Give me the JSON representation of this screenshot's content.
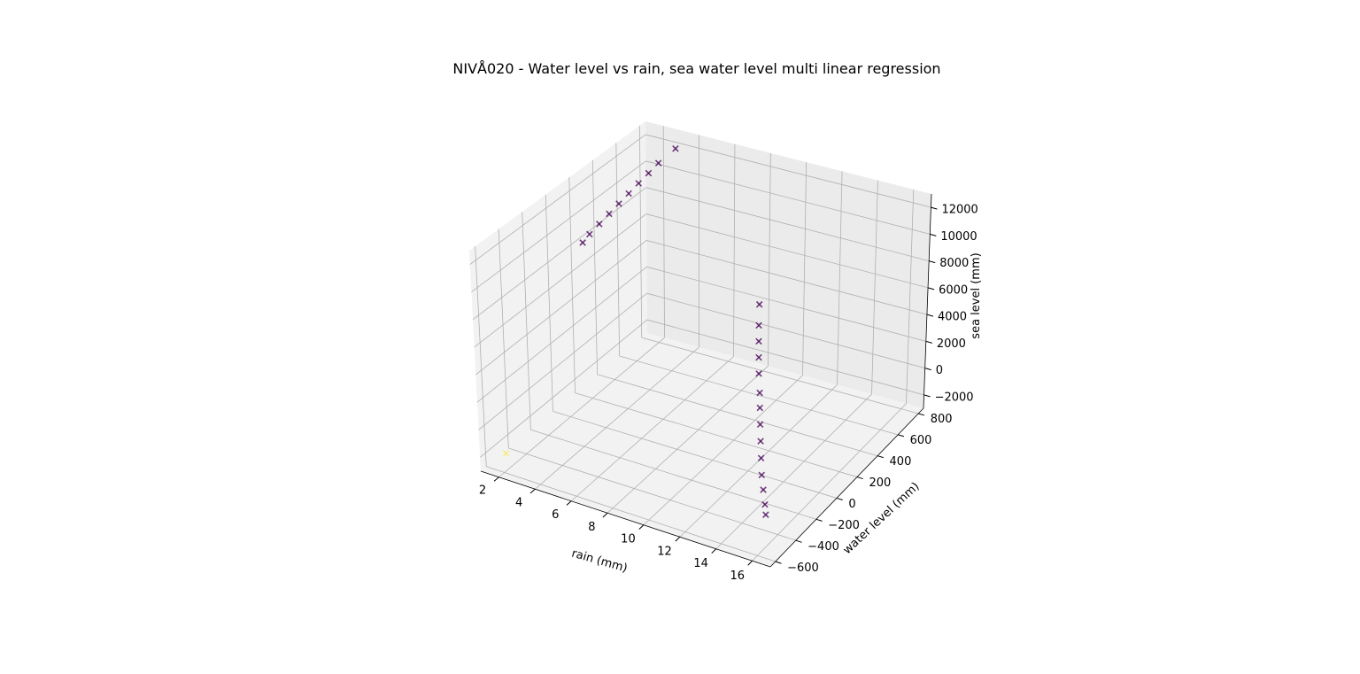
{
  "chart_data": {
    "type": "scatter",
    "title": "NIVÅ020 - Water level vs rain, sea water level  multi linear regression",
    "xlabel": "rain (mm)",
    "ylabel": "water level (mm)",
    "zlabel": "sea level (mm)",
    "x_ticks": [
      "2",
      "4",
      "6",
      "8",
      "10",
      "12",
      "14",
      "16"
    ],
    "y_ticks": [
      "−600",
      "−400",
      "−200",
      "0",
      "200",
      "400",
      "600",
      "800"
    ],
    "z_ticks": [
      "−2000",
      "0",
      "2000",
      "4000",
      "6000",
      "8000",
      "10000",
      "12000"
    ],
    "xlim": [
      1,
      17
    ],
    "ylim": [
      -650,
      850
    ],
    "zlim": [
      -3000,
      13000
    ],
    "marker": "x",
    "colors": {
      "dark": "#440154",
      "light": "#fde725"
    },
    "series": [
      {
        "points": [
          {
            "x": 1.0,
            "y": 300,
            "z": 7500
          },
          {
            "x": 1.2,
            "y": 330,
            "z": 8000
          },
          {
            "x": 1.5,
            "y": 370,
            "z": 8600
          },
          {
            "x": 1.8,
            "y": 410,
            "z": 9200
          },
          {
            "x": 2.1,
            "y": 450,
            "z": 9800
          },
          {
            "x": 2.4,
            "y": 490,
            "z": 10400
          },
          {
            "x": 2.7,
            "y": 530,
            "z": 11000
          },
          {
            "x": 3.0,
            "y": 570,
            "z": 11600
          },
          {
            "x": 3.3,
            "y": 610,
            "z": 12200
          },
          {
            "x": 3.8,
            "y": 680,
            "z": 13000
          },
          {
            "x": 16.0,
            "y": -500,
            "z": -1000
          },
          {
            "x": 15.8,
            "y": -470,
            "z": -600
          },
          {
            "x": 15.5,
            "y": -430,
            "z": 0
          },
          {
            "x": 15.2,
            "y": -390,
            "z": 600
          },
          {
            "x": 14.9,
            "y": -340,
            "z": 1300
          },
          {
            "x": 14.6,
            "y": -290,
            "z": 2000
          },
          {
            "x": 14.3,
            "y": -240,
            "z": 2700
          },
          {
            "x": 14.0,
            "y": -190,
            "z": 3400
          },
          {
            "x": 13.7,
            "y": -140,
            "z": 4000
          },
          {
            "x": 13.3,
            "y": -80,
            "z": 4800
          },
          {
            "x": 13.0,
            "y": -30,
            "z": 5500
          },
          {
            "x": 12.7,
            "y": 20,
            "z": 6200
          },
          {
            "x": 12.4,
            "y": 70,
            "z": 6900
          },
          {
            "x": 12.0,
            "y": 140,
            "z": 7800
          },
          {
            "x": 1.5,
            "y": -500,
            "z": -2500
          }
        ]
      }
    ]
  }
}
